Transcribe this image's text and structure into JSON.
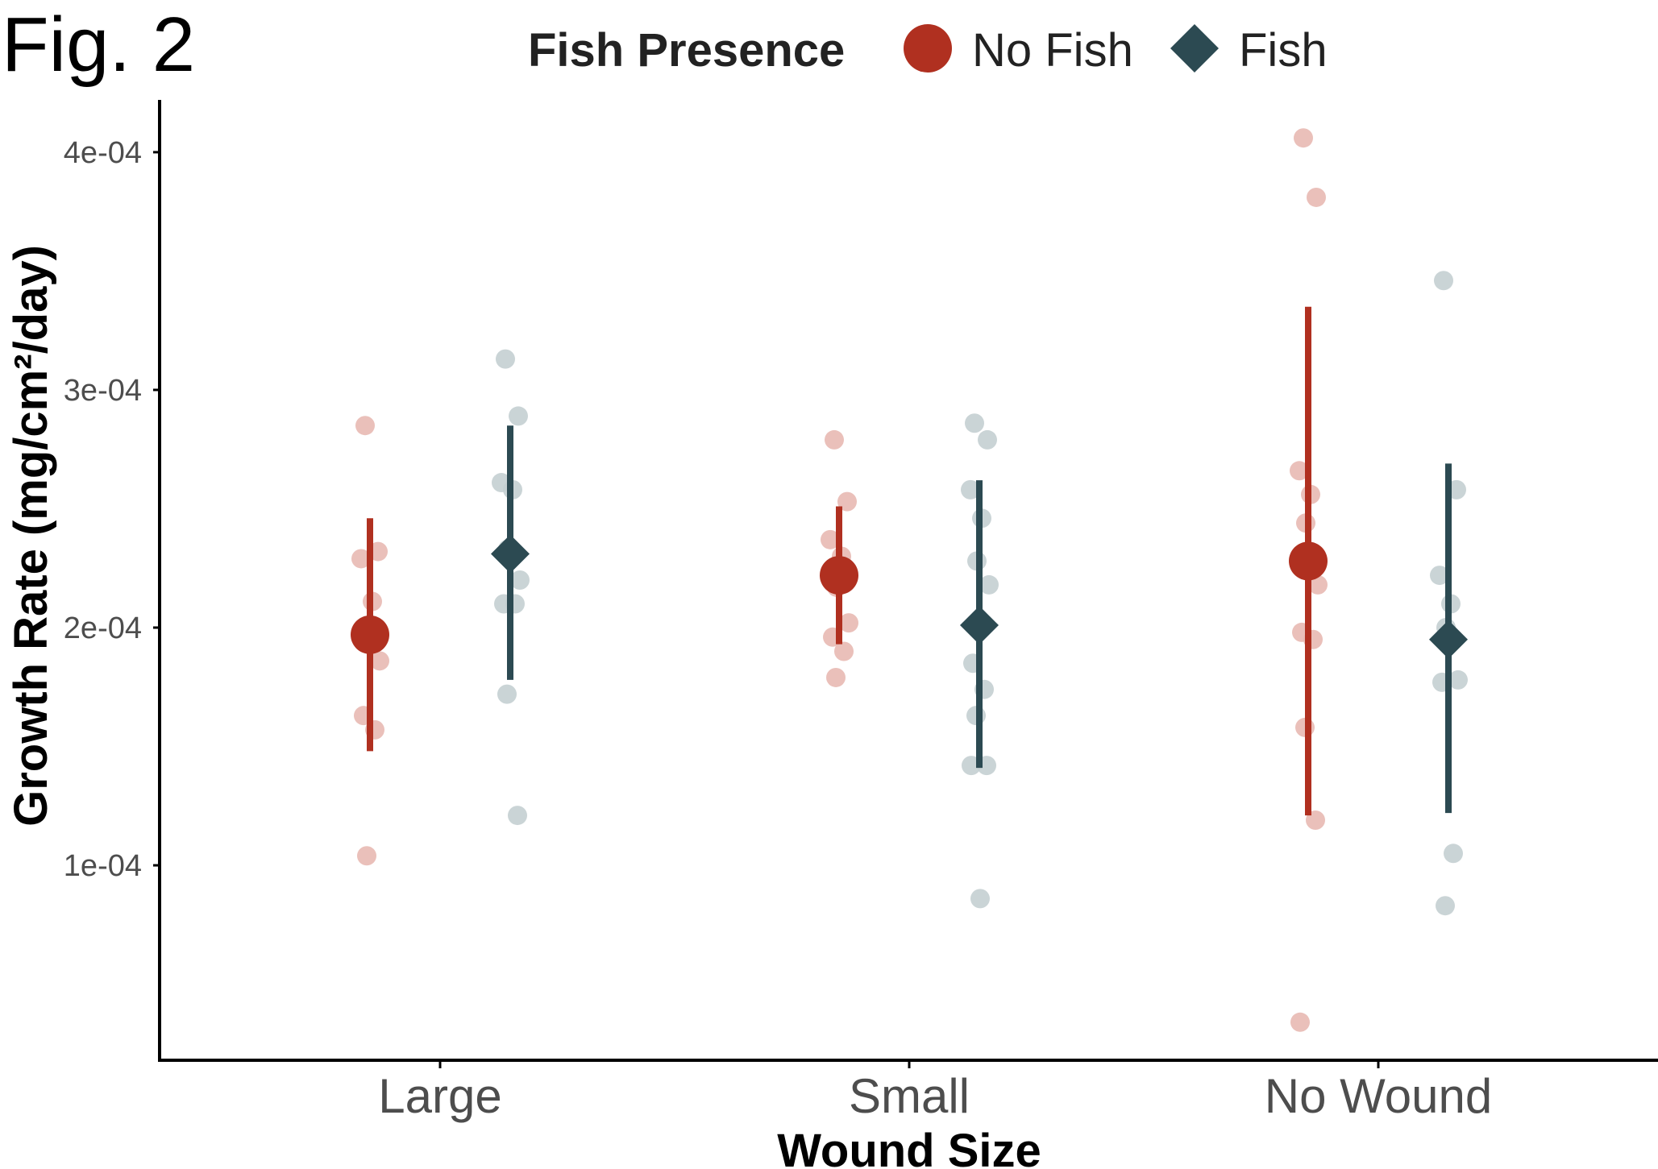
{
  "figure_label": "Fig. 2",
  "legend": {
    "title": "Fish Presence",
    "items": [
      {
        "label": "No Fish",
        "shape": "circle",
        "color": "#b03020"
      },
      {
        "label": "Fish",
        "shape": "diamond",
        "color": "#2c4a52"
      }
    ]
  },
  "chart_data": {
    "type": "scatter",
    "xlabel": "Wound Size",
    "ylabel": "Growth Rate (mg/cm²/day)",
    "categories": [
      "Large",
      "Small",
      "No Wound"
    ],
    "ylim": [
      1.8e-05,
      0.000422
    ],
    "yticks": [
      0.0001,
      0.0002,
      0.0003,
      0.0004
    ],
    "ytick_labels": [
      "1e-04",
      "2e-04",
      "3e-04",
      "4e-04"
    ],
    "grid": false,
    "legend_position": "top",
    "series": [
      {
        "name": "No Fish",
        "marker": "circle",
        "color": "#b03020",
        "point_color": "#e8b9b2",
        "summary": [
          {
            "category": "Large",
            "mean": 0.000197,
            "lower": 0.000148,
            "upper": 0.000246
          },
          {
            "category": "Small",
            "mean": 0.000222,
            "lower": 0.000193,
            "upper": 0.000251
          },
          {
            "category": "No Wound",
            "mean": 0.000228,
            "lower": 0.000121,
            "upper": 0.000335
          }
        ],
        "points": [
          {
            "category": "Large",
            "values": [
              0.000285,
              0.000232,
              0.000229,
              0.000211,
              0.000198,
              0.000186,
              0.000163,
              0.000157,
              0.000104
            ]
          },
          {
            "category": "Small",
            "values": [
              0.000279,
              0.000253,
              0.000237,
              0.00023,
              0.000217,
              0.000202,
              0.000196,
              0.00019,
              0.000179
            ]
          },
          {
            "category": "No Wound",
            "values": [
              0.000406,
              0.000381,
              0.000266,
              0.000256,
              0.000244,
              0.000218,
              0.000198,
              0.000195,
              0.000158,
              0.000119,
              3.4e-05
            ]
          }
        ]
      },
      {
        "name": "Fish",
        "marker": "diamond",
        "color": "#2c4a52",
        "point_color": "#c4cfd1",
        "summary": [
          {
            "category": "Large",
            "mean": 0.000231,
            "lower": 0.000178,
            "upper": 0.000285
          },
          {
            "category": "Small",
            "mean": 0.000201,
            "lower": 0.000141,
            "upper": 0.000262
          },
          {
            "category": "No Wound",
            "mean": 0.000195,
            "lower": 0.000122,
            "upper": 0.000269
          }
        ],
        "points": [
          {
            "category": "Large",
            "values": [
              0.000313,
              0.000289,
              0.000261,
              0.000258,
              0.000233,
              0.00022,
              0.00021,
              0.00021,
              0.000172,
              0.000121
            ]
          },
          {
            "category": "Small",
            "values": [
              0.000286,
              0.000279,
              0.000258,
              0.000246,
              0.000228,
              0.000218,
              0.000185,
              0.000174,
              0.000163,
              0.000142,
              0.000142,
              8.6e-05
            ]
          },
          {
            "category": "No Wound",
            "values": [
              0.000346,
              0.000258,
              0.000222,
              0.00021,
              0.0002,
              0.000178,
              0.000177,
              0.000105,
              8.3e-05
            ]
          }
        ]
      }
    ]
  }
}
